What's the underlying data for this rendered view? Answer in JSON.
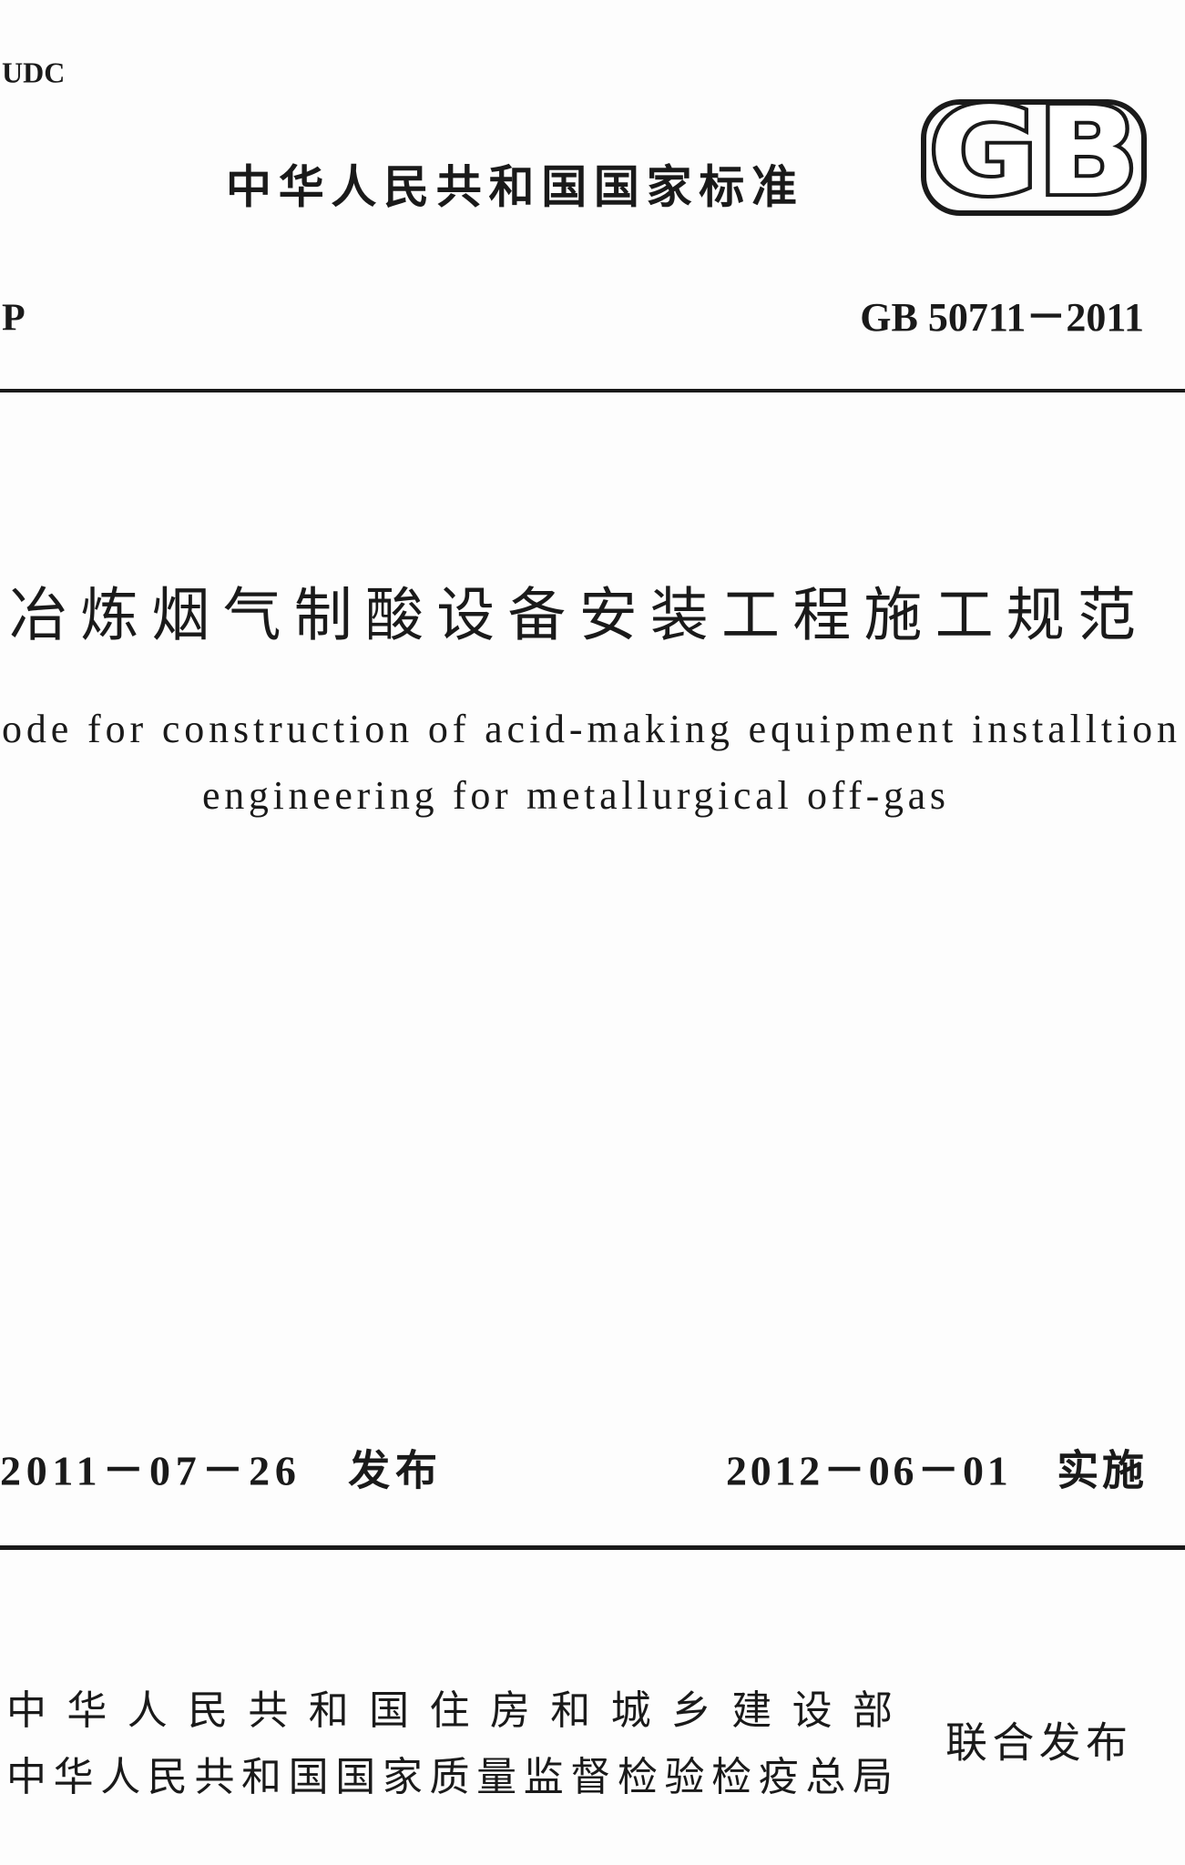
{
  "header": {
    "udc": "UDC",
    "standard_type": "中华人民共和国国家标准",
    "logo": "GB",
    "classification": "P",
    "code": "GB 50711－2011"
  },
  "title": {
    "chinese": "冶炼烟气制酸设备安装工程施工规范",
    "english": [
      "ode for construction of acid-making equipment installtion",
      "engineering for metallurgical off-gas"
    ]
  },
  "dates": {
    "issue": "2011－07－26　发布",
    "implement": "2012－06－01　实施"
  },
  "issuers": {
    "names": [
      "中华人民共和国住房和城乡建设部",
      "中华人民共和国国家质量监督检验检疫总局"
    ],
    "note": "联合发布"
  }
}
